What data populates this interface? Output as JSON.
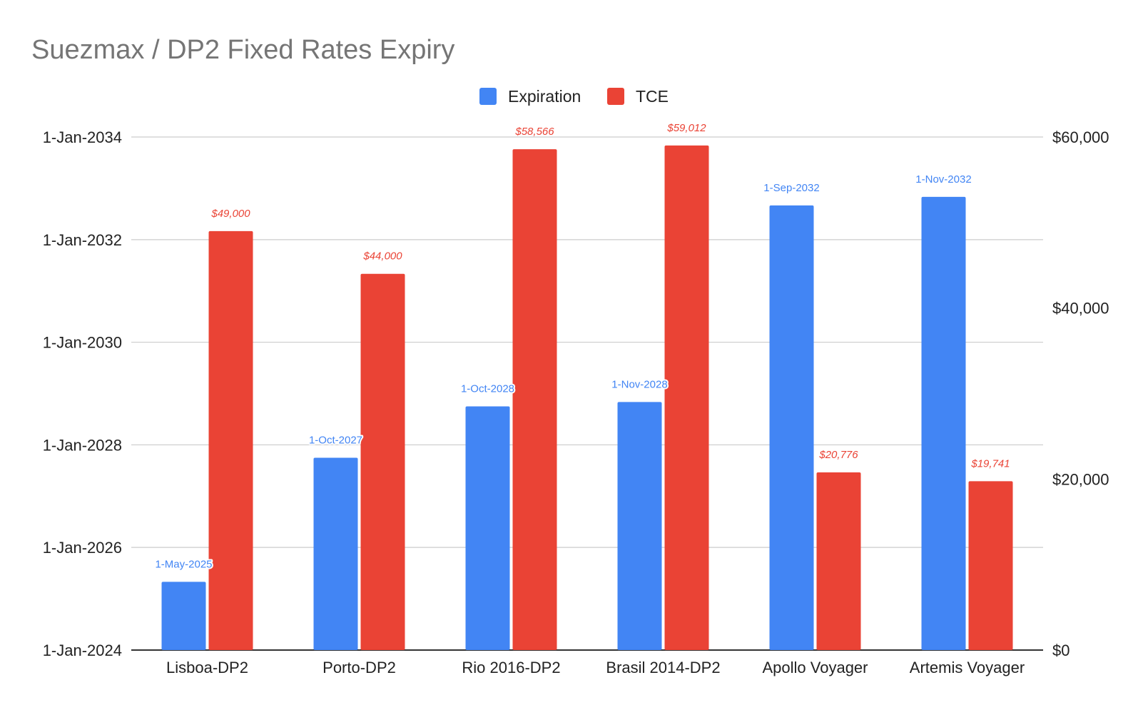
{
  "chart_data": {
    "type": "bar",
    "title": "Suezmax / DP2 Fixed Rates Expiry",
    "categories": [
      "Lisboa-DP2",
      "Porto-DP2",
      "Rio 2016-DP2",
      "Brasil 2014-DP2",
      "Apollo Voyager",
      "Artemis Voyager"
    ],
    "legend": {
      "position": "top-center"
    },
    "grid": true,
    "colors": {
      "Expiration": "#4285f4",
      "TCE": "#ea4335"
    },
    "series": [
      {
        "name": "Expiration",
        "axis": "left",
        "values": [
          "2025-05-01",
          "2027-10-01",
          "2028-10-01",
          "2028-11-01",
          "2032-09-01",
          "2032-11-01"
        ],
        "labels": [
          "1-May-2025",
          "1-Oct-2027",
          "1-Oct-2028",
          "1-Nov-2028",
          "1-Sep-2032",
          "1-Nov-2032"
        ]
      },
      {
        "name": "TCE",
        "axis": "right",
        "values": [
          49000,
          44000,
          58566,
          59012,
          20776,
          19741
        ],
        "labels": [
          "$49,000",
          "$44,000",
          "$58,566",
          "$59,012",
          "$20,776",
          "$19,741"
        ]
      }
    ],
    "left_axis": {
      "range": [
        "2024-01-01",
        "2034-01-01"
      ],
      "ticks": [
        "2024-01-01",
        "2026-01-01",
        "2028-01-01",
        "2030-01-01",
        "2032-01-01",
        "2034-01-01"
      ],
      "tick_labels": [
        "1-Jan-2024",
        "1-Jan-2026",
        "1-Jan-2028",
        "1-Jan-2030",
        "1-Jan-2032",
        "1-Jan-2034"
      ]
    },
    "right_axis": {
      "range": [
        0,
        60000
      ],
      "ticks": [
        0,
        20000,
        40000,
        60000
      ],
      "tick_labels": [
        "$0",
        "$20,000",
        "$40,000",
        "$60,000"
      ]
    }
  }
}
